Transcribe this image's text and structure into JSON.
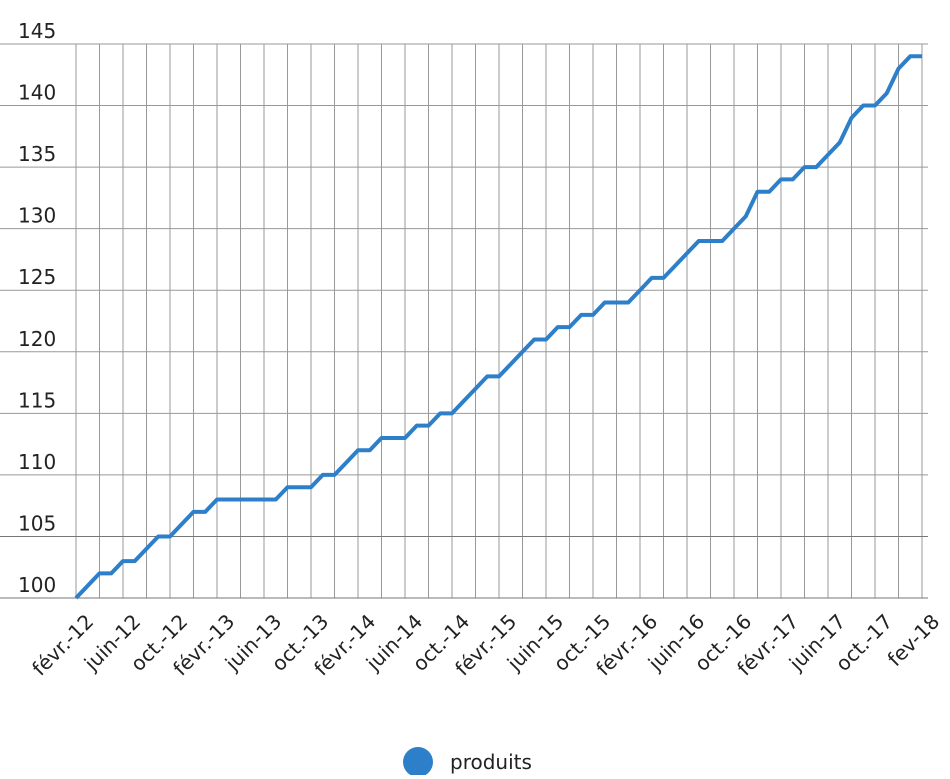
{
  "chart_data": {
    "type": "line",
    "categories": [
      "févr.-12",
      null,
      null,
      null,
      "juin-12",
      null,
      null,
      null,
      "oct.-12",
      null,
      null,
      null,
      "févr.-13",
      null,
      null,
      null,
      "juin-13",
      null,
      null,
      null,
      "oct.-13",
      null,
      null,
      null,
      "févr.-14",
      null,
      null,
      null,
      "juin-14",
      null,
      null,
      null,
      "oct.-14",
      null,
      null,
      null,
      "févr.-15",
      null,
      null,
      null,
      "juin-15",
      null,
      null,
      null,
      "oct.-15",
      null,
      null,
      null,
      "févr.-16",
      null,
      null,
      null,
      "juin-16",
      null,
      null,
      null,
      "oct.-16",
      null,
      null,
      null,
      "févr.-17",
      null,
      null,
      null,
      "juin-17",
      null,
      null,
      null,
      "oct.-17",
      null,
      null,
      null,
      "fev-18"
    ],
    "series": [
      {
        "name": "produits",
        "color": "#2e7fca",
        "values": [
          100,
          101,
          102,
          102,
          103,
          103,
          104,
          105,
          105,
          106,
          107,
          107,
          108,
          108,
          108,
          108,
          108,
          108,
          109,
          109,
          109,
          110,
          110,
          111,
          112,
          112,
          113,
          113,
          113,
          114,
          114,
          115,
          115,
          116,
          117,
          118,
          118,
          119,
          120,
          121,
          121,
          122,
          122,
          123,
          123,
          124,
          124,
          124,
          125,
          126,
          126,
          127,
          128,
          129,
          129,
          129,
          130,
          131,
          133,
          133,
          134,
          134,
          135,
          135,
          136,
          137,
          139,
          140,
          140,
          141,
          143,
          144,
          144
        ]
      }
    ],
    "ylim": [
      100,
      145
    ],
    "yticks": [
      100,
      105,
      110,
      115,
      120,
      125,
      130,
      135,
      140,
      145
    ],
    "grid": true,
    "legend": "bottom"
  }
}
